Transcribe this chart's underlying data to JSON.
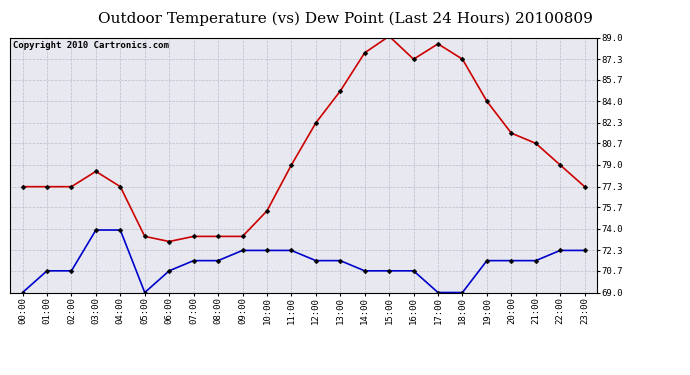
{
  "title": "Outdoor Temperature (vs) Dew Point (Last 24 Hours) 20100809",
  "copyright": "Copyright 2010 Cartronics.com",
  "x_labels": [
    "00:00",
    "01:00",
    "02:00",
    "03:00",
    "04:00",
    "05:00",
    "06:00",
    "07:00",
    "08:00",
    "09:00",
    "10:00",
    "11:00",
    "12:00",
    "13:00",
    "14:00",
    "15:00",
    "16:00",
    "17:00",
    "18:00",
    "19:00",
    "20:00",
    "21:00",
    "22:00",
    "23:00"
  ],
  "temp_data": [
    77.3,
    77.3,
    77.3,
    78.5,
    77.3,
    73.4,
    73.0,
    73.4,
    73.4,
    73.4,
    75.4,
    79.0,
    82.3,
    84.8,
    87.8,
    89.1,
    87.3,
    88.5,
    87.3,
    84.0,
    81.5,
    80.7,
    79.0,
    77.3
  ],
  "dew_data": [
    69.0,
    70.7,
    70.7,
    73.9,
    73.9,
    69.0,
    70.7,
    71.5,
    71.5,
    72.3,
    72.3,
    72.3,
    71.5,
    71.5,
    70.7,
    70.7,
    70.7,
    69.0,
    69.0,
    71.5,
    71.5,
    71.5,
    72.3,
    72.3
  ],
  "temp_color": "#cc0000",
  "dew_color": "#0000cc",
  "bg_color": "#ffffff",
  "plot_bg_color": "#e8e8f0",
  "grid_color": "#bbbbcc",
  "ylim": [
    69.0,
    89.0
  ],
  "yticks": [
    69.0,
    70.7,
    72.3,
    74.0,
    75.7,
    77.3,
    79.0,
    80.7,
    82.3,
    84.0,
    85.7,
    87.3,
    89.0
  ],
  "title_fontsize": 11,
  "copyright_fontsize": 6.5
}
